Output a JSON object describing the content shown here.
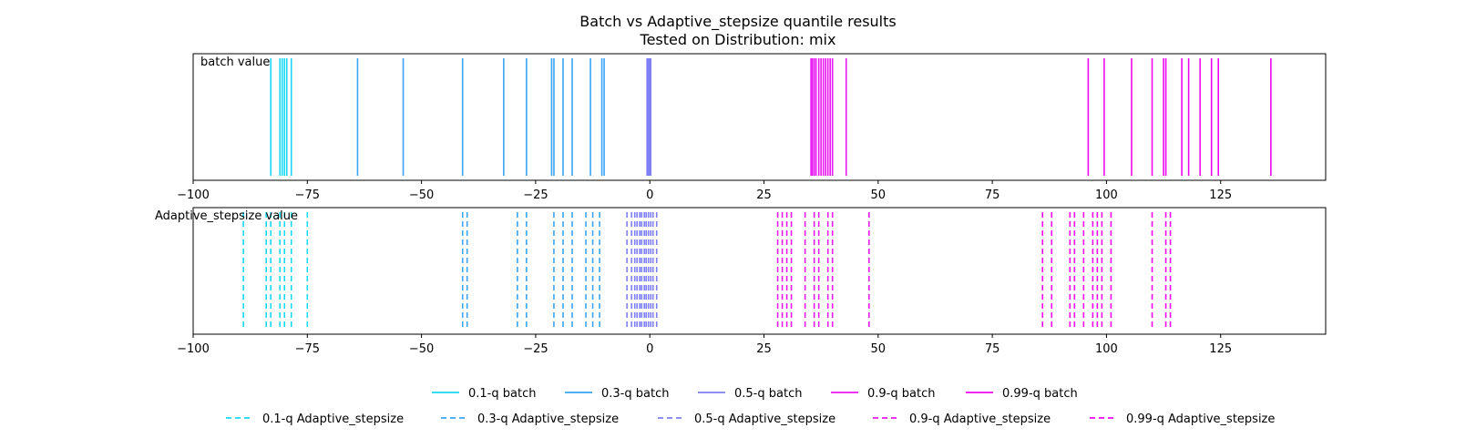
{
  "chart_data": {
    "type": "line",
    "title": "Batch vs Adaptive_stepsize quantile results",
    "subtitle": "Tested on Distribution: mix",
    "xlim": [
      -100,
      148
    ],
    "xticks": [
      -100,
      -75,
      -50,
      -25,
      0,
      25,
      50,
      75,
      100,
      125
    ],
    "xtick_labels": [
      "−100",
      "−75",
      "−50",
      "−25",
      "0",
      "25",
      "50",
      "75",
      "100",
      "125"
    ],
    "grid": false,
    "legend_placement": "bottom-center",
    "panels": [
      {
        "label": "batch value",
        "line_style": "solid",
        "series": [
          {
            "name": "0.1-q batch",
            "color": "#19d8f5",
            "values": [
              -83,
              -81,
              -80.5,
              -80,
              -79.5,
              -78.5
            ]
          },
          {
            "name": "0.3-q batch",
            "color": "#3aa5f5",
            "values": [
              -64,
              -54,
              -41,
              -32,
              -27,
              -21.5,
              -21,
              -19,
              -17,
              -13,
              -10.5,
              -10
            ]
          },
          {
            "name": "0.5-q batch",
            "color": "#7f7ff5",
            "values": [
              -0.6,
              -0.4,
              -0.2,
              0,
              0.2
            ]
          },
          {
            "name": "0.9-q batch",
            "color": "#e818f0",
            "values": [
              35.3,
              35.6,
              36,
              36.4,
              37,
              37.5,
              38,
              38.5,
              39,
              39.5,
              40,
              43
            ]
          },
          {
            "name": "0.99-q batch",
            "color": "#f008f0",
            "values": [
              96,
              99.5,
              105.5,
              110,
              112.5,
              113,
              116.5,
              118,
              120.5,
              123,
              124.5,
              136
            ]
          }
        ]
      },
      {
        "label": "Adaptive_stepsize value",
        "line_style": "dashed",
        "series": [
          {
            "name": "0.1-q Adaptive_stepsize",
            "color": "#19d8f5",
            "values": [
              -89,
              -84,
              -83,
              -81,
              -80,
              -78.5,
              -75
            ]
          },
          {
            "name": "0.3-q Adaptive_stepsize",
            "color": "#3aa5f5",
            "values": [
              -41,
              -40,
              -29,
              -27,
              -21,
              -19,
              -17,
              -14,
              -12.5,
              -11
            ]
          },
          {
            "name": "0.5-q Adaptive_stepsize",
            "color": "#7f7ff5",
            "values": [
              -5,
              -4,
              -3.3,
              -2.8,
              -2.2,
              -1.8,
              -1.2,
              -0.8,
              -0.3,
              0.2,
              0.7,
              1.5
            ]
          },
          {
            "name": "0.9-q Adaptive_stepsize",
            "color": "#e818f0",
            "values": [
              28,
              29,
              30,
              31,
              34,
              36,
              37,
              39,
              40,
              48
            ]
          },
          {
            "name": "0.99-q Adaptive_stepsize",
            "color": "#f008f0",
            "values": [
              86,
              88,
              92,
              93,
              95,
              97,
              98,
              99,
              101,
              110,
              113,
              114
            ]
          }
        ]
      }
    ]
  }
}
